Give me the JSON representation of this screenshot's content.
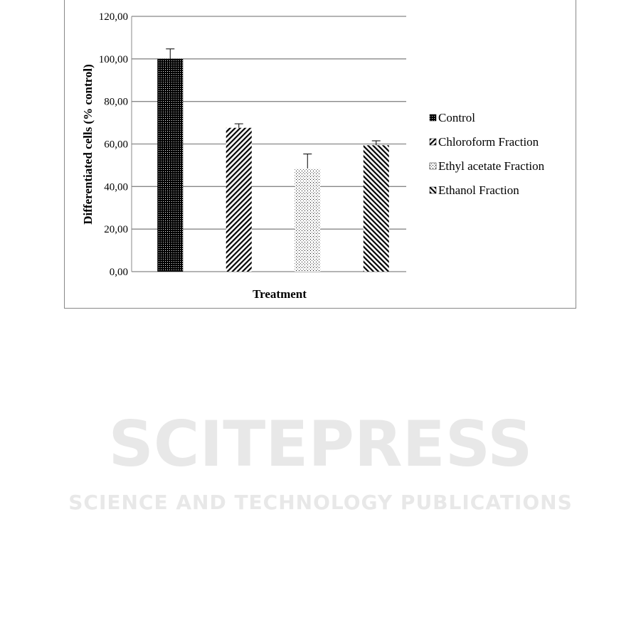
{
  "chart_data": {
    "type": "bar",
    "categories": [
      "Control",
      "Chloroform Fraction",
      "Ethyl acetate Fraction",
      "Ethanol Fraction"
    ],
    "values": [
      100.0,
      67.6,
      48.5,
      59.4
    ],
    "error": [
      4.7,
      1.9,
      6.8,
      2.1
    ],
    "xlabel": "Treatment",
    "ylabel": "Differentiated cells (% control)",
    "ylim": [
      0,
      120
    ],
    "yticks": [
      "0,00",
      "20,00",
      "40,00",
      "60,00",
      "80,00",
      "100,00",
      "120,00"
    ],
    "grid": true,
    "legend": {
      "placement": "right",
      "entries": [
        "Control",
        "Chloroform Fraction",
        "Ethyl acetate Fraction",
        "Ethanol Fraction"
      ]
    }
  },
  "watermark": {
    "title": "SCITEPRESS",
    "subtitle": "SCIENCE AND TECHNOLOGY PUBLICATIONS"
  }
}
